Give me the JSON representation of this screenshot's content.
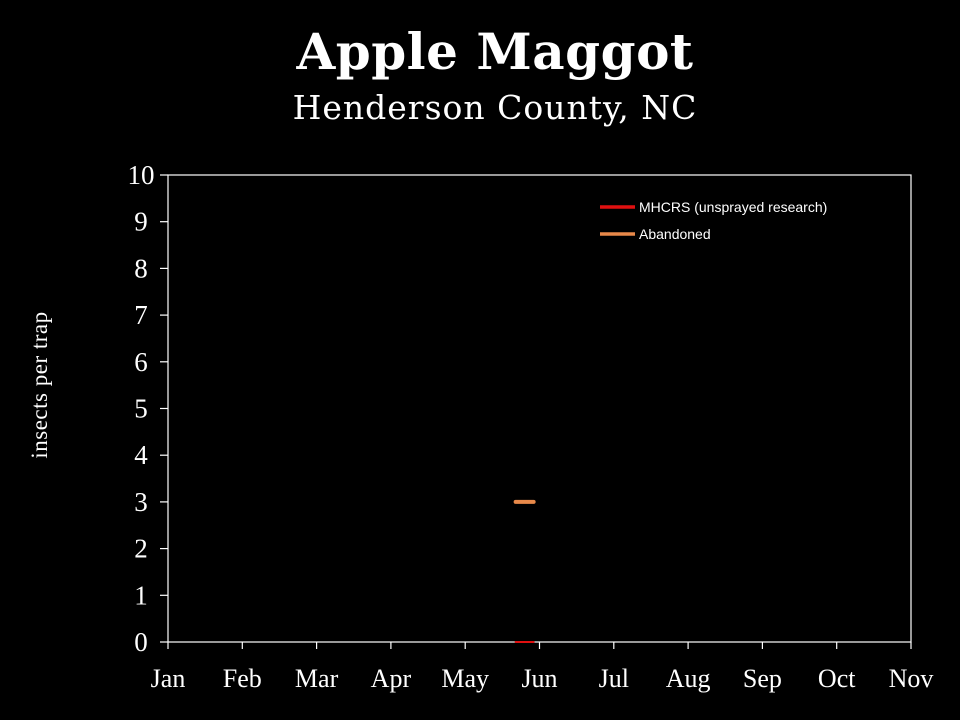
{
  "title": "Apple Maggot",
  "subtitle": "Henderson County, NC",
  "chart_data": {
    "type": "line",
    "title": "Apple Maggot",
    "subtitle": "Henderson County, NC",
    "xlabel": "",
    "ylabel": "insects per trap",
    "x_ticks": [
      "Jan",
      "Feb",
      "Mar",
      "Apr",
      "May",
      "Jun",
      "Jul",
      "Aug",
      "Sep",
      "Oct",
      "Nov"
    ],
    "y_ticks": [
      0,
      1,
      2,
      3,
      4,
      5,
      6,
      7,
      8,
      9,
      10
    ],
    "ylim": [
      0,
      10
    ],
    "xlim": [
      "Jan",
      "Nov"
    ],
    "grid": false,
    "legend_position": "top-right",
    "series": [
      {
        "name": "MHCRS (unsprayed research)",
        "color": "#e01010",
        "points": [
          {
            "x": "May 25",
            "y": 0
          }
        ]
      },
      {
        "name": "Abandoned",
        "color": "#e8894a",
        "points": [
          {
            "x": "May 25",
            "y": 3
          }
        ]
      }
    ]
  }
}
